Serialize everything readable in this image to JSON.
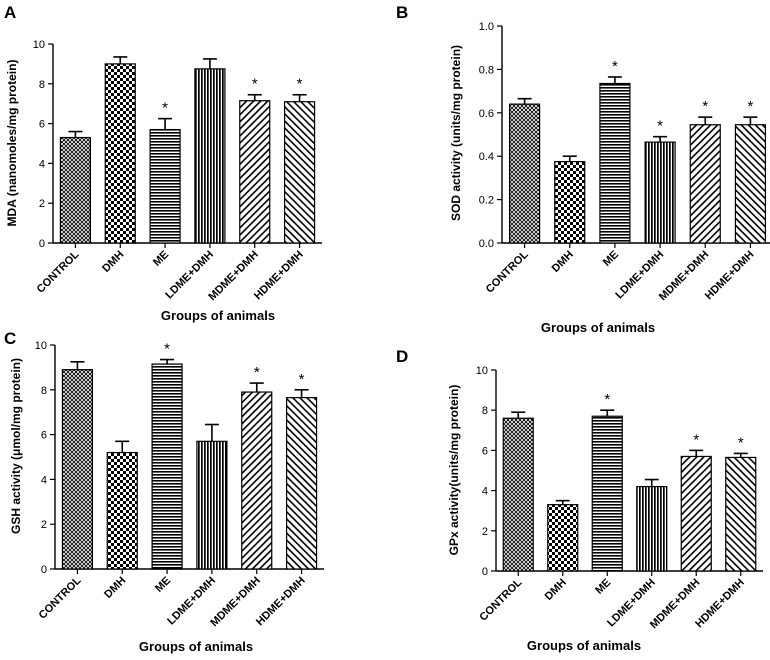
{
  "chart_data": [
    {
      "panel": "A",
      "type": "bar",
      "title": "",
      "xlabel": "Groups of animals",
      "ylabel": "MDA (nanomoles/mg protein)",
      "categories": [
        "CONTROL",
        "DMH",
        "ME",
        "LDME+DMH",
        "MDME+DMH",
        "HDME+DMH"
      ],
      "values": [
        5.3,
        9.0,
        5.7,
        8.75,
        7.15,
        7.1
      ],
      "errors": [
        0.3,
        0.35,
        0.55,
        0.5,
        0.3,
        0.35
      ],
      "significance": [
        "",
        "",
        "*",
        "",
        "*",
        "*"
      ],
      "ylim": [
        0,
        10
      ],
      "yticks": [
        0,
        2,
        4,
        6,
        8,
        10
      ],
      "ytick_labels": [
        "0",
        "2",
        "4",
        "6",
        "8",
        "10"
      ]
    },
    {
      "panel": "B",
      "type": "bar",
      "title": "",
      "xlabel": "Groups of animals",
      "ylabel": "SOD activity (units/mg protein)",
      "categories": [
        "CONTROL",
        "DMH",
        "ME",
        "LDME+DMH",
        "MDME+DMH",
        "HDME+DMH"
      ],
      "values": [
        0.64,
        0.375,
        0.735,
        0.465,
        0.545,
        0.545
      ],
      "errors": [
        0.025,
        0.025,
        0.03,
        0.025,
        0.035,
        0.035
      ],
      "significance": [
        "",
        "",
        "*",
        "*",
        "*",
        "*"
      ],
      "ylim": [
        0,
        1.0
      ],
      "yticks": [
        0,
        0.2,
        0.4,
        0.6,
        0.8,
        1.0
      ],
      "ytick_labels": [
        "0.0",
        "0.2",
        "0.4",
        "0.6",
        "0.8",
        "1.0"
      ]
    },
    {
      "panel": "C",
      "type": "bar",
      "title": "",
      "xlabel": "Groups of animals",
      "ylabel": "GSH activity (μmol/mg protein)",
      "categories": [
        "CONTROL",
        "DMH",
        "ME",
        "LDME+DMH",
        "MDME+DMH",
        "HDME+DMH"
      ],
      "values": [
        8.9,
        5.2,
        9.15,
        5.7,
        7.9,
        7.65
      ],
      "errors": [
        0.35,
        0.5,
        0.2,
        0.75,
        0.4,
        0.35
      ],
      "significance": [
        "",
        "",
        "*",
        "",
        "*",
        "*"
      ],
      "ylim": [
        0,
        10
      ],
      "yticks": [
        0,
        2,
        4,
        6,
        8,
        10
      ],
      "ytick_labels": [
        "0",
        "2",
        "4",
        "6",
        "8",
        "10"
      ]
    },
    {
      "panel": "D",
      "type": "bar",
      "title": "",
      "xlabel": "Groups of animals",
      "ylabel": "GPx activity(units/mg protein)",
      "categories": [
        "CONTROL",
        "DMH",
        "ME",
        "LDME+DMH",
        "MDME+DMH",
        "HDME+DMH"
      ],
      "values": [
        7.6,
        3.3,
        7.7,
        4.2,
        5.7,
        5.65
      ],
      "errors": [
        0.3,
        0.2,
        0.3,
        0.35,
        0.3,
        0.2
      ],
      "significance": [
        "",
        "",
        "*",
        "",
        "*",
        "*"
      ],
      "ylim": [
        0,
        10
      ],
      "yticks": [
        0,
        2,
        4,
        6,
        8,
        10
      ],
      "ytick_labels": [
        "0",
        "2",
        "4",
        "6",
        "8",
        "10"
      ]
    }
  ],
  "patterns": [
    "crosshatch",
    "checker",
    "horizontal-lines",
    "vertical-lines",
    "diagonal-back",
    "diagonal-forward"
  ],
  "colors": {
    "ink": "#000000",
    "background": "#ffffff"
  }
}
